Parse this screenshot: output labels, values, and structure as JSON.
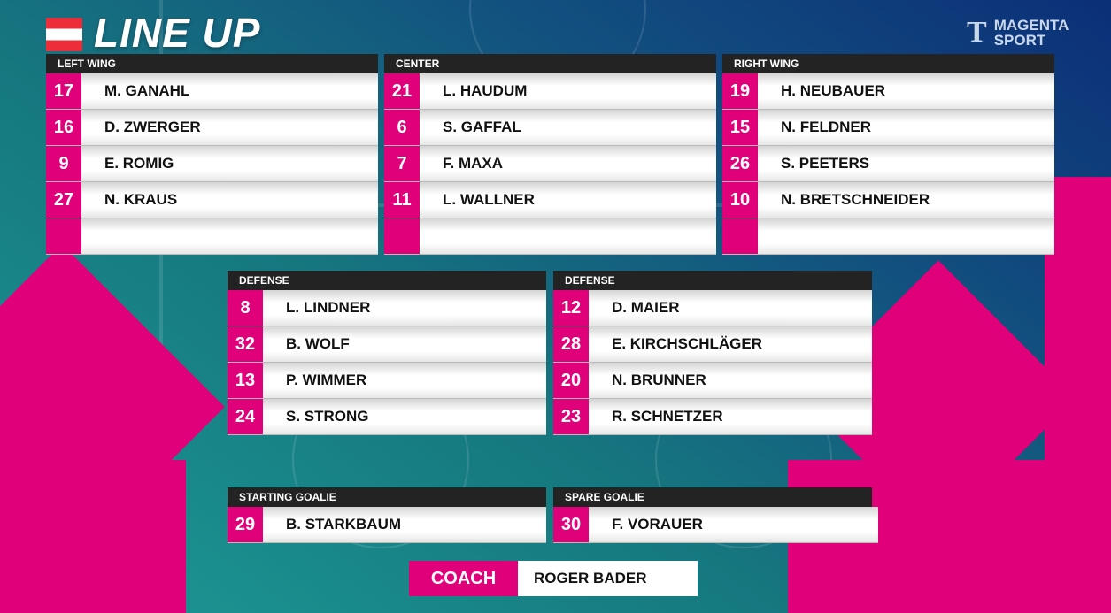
{
  "header": {
    "title": "LINE UP",
    "logo_line1": "MAGENTA",
    "logo_line2": "SPORT",
    "logo_mark": "T"
  },
  "colors": {
    "accent": "#e0007a",
    "header_bar": "#232323"
  },
  "panels": [
    {
      "title": "LEFT WING",
      "players": [
        {
          "num": "17",
          "name": "M. GANAHL"
        },
        {
          "num": "16",
          "name": "D. ZWERGER"
        },
        {
          "num": "9",
          "name": "E. ROMIG"
        },
        {
          "num": "27",
          "name": "N. KRAUS"
        },
        {
          "num": "",
          "name": ""
        }
      ]
    },
    {
      "title": "CENTER",
      "players": [
        {
          "num": "21",
          "name": "L. HAUDUM"
        },
        {
          "num": "6",
          "name": "S. GAFFAL"
        },
        {
          "num": "7",
          "name": "F. MAXA"
        },
        {
          "num": "11",
          "name": "L. WALLNER"
        },
        {
          "num": "",
          "name": ""
        }
      ]
    },
    {
      "title": "RIGHT WING",
      "players": [
        {
          "num": "19",
          "name": "H. NEUBAUER"
        },
        {
          "num": "15",
          "name": "N. FELDNER"
        },
        {
          "num": "26",
          "name": "S. PEETERS"
        },
        {
          "num": "10",
          "name": "N. BRETSCHNEIDER"
        },
        {
          "num": "",
          "name": ""
        }
      ]
    },
    {
      "title": "DEFENSE",
      "players": [
        {
          "num": "8",
          "name": "L. LINDNER"
        },
        {
          "num": "32",
          "name": "B. WOLF"
        },
        {
          "num": "13",
          "name": "P. WIMMER"
        },
        {
          "num": "24",
          "name": "S. STRONG"
        }
      ]
    },
    {
      "title": "DEFENSE",
      "players": [
        {
          "num": "12",
          "name": "D. MAIER"
        },
        {
          "num": "28",
          "name": "E. KIRCHSCHLÄGER"
        },
        {
          "num": "20",
          "name": "N. BRUNNER"
        },
        {
          "num": "23",
          "name": "R. SCHNETZER"
        }
      ]
    },
    {
      "title": "STARTING GOALIE",
      "players": [
        {
          "num": "29",
          "name": "B. STARKBAUM"
        }
      ]
    },
    {
      "title": "SPARE GOALIE",
      "players": [
        {
          "num": "30",
          "name": "F. VORAUER"
        }
      ]
    }
  ],
  "coach": {
    "label": "COACH",
    "name": "ROGER BADER"
  }
}
